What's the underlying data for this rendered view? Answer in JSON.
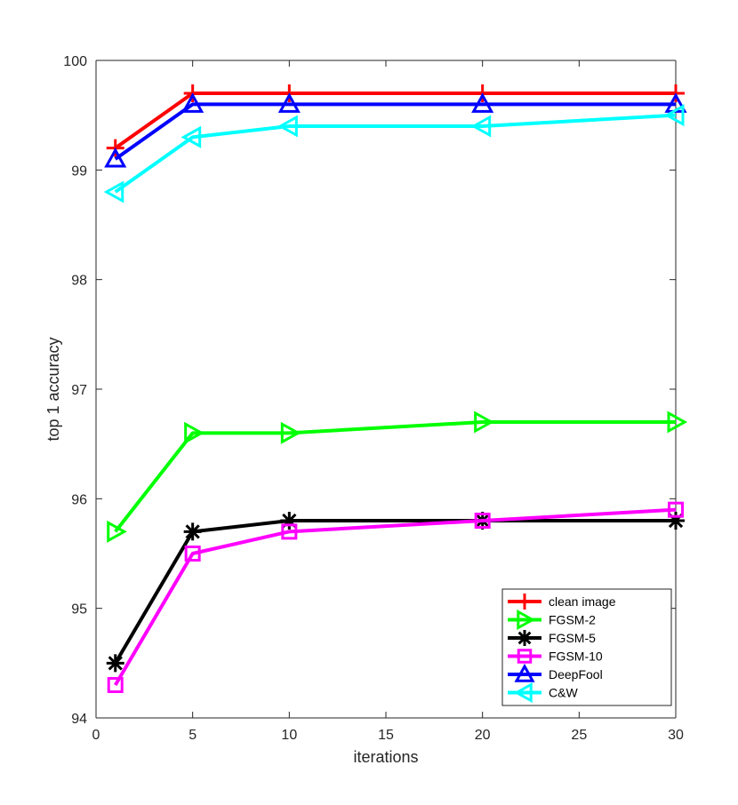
{
  "chart_data": {
    "type": "line",
    "title": "",
    "xlabel": "iterations",
    "ylabel": "top 1 accuracy",
    "xlim": [
      0,
      30
    ],
    "ylim": [
      94,
      100
    ],
    "xticks": [
      0,
      5,
      10,
      15,
      20,
      25,
      30
    ],
    "yticks": [
      94,
      95,
      96,
      97,
      98,
      99,
      100
    ],
    "grid": false,
    "legend_position": "bottom-right",
    "x": [
      1,
      5,
      10,
      20,
      30
    ],
    "series": [
      {
        "name": "clean image",
        "color": "#ff0000",
        "marker": "plus",
        "values": [
          99.2,
          99.7,
          99.7,
          99.7,
          99.7
        ]
      },
      {
        "name": "FGSM-2",
        "color": "#00ff00",
        "marker": "triangle-right",
        "values": [
          95.7,
          96.6,
          96.6,
          96.7,
          96.7
        ]
      },
      {
        "name": "FGSM-5",
        "color": "#000000",
        "marker": "asterisk",
        "values": [
          94.5,
          95.7,
          95.8,
          95.8,
          95.8
        ]
      },
      {
        "name": "FGSM-10",
        "color": "#ff00ff",
        "marker": "square",
        "values": [
          94.3,
          95.5,
          95.7,
          95.8,
          95.9
        ]
      },
      {
        "name": "DeepFool",
        "color": "#0000ff",
        "marker": "triangle-up",
        "values": [
          99.1,
          99.6,
          99.6,
          99.6,
          99.6
        ]
      },
      {
        "name": "C&W",
        "color": "#00ffff",
        "marker": "triangle-left",
        "values": [
          98.8,
          99.3,
          99.4,
          99.4,
          99.5
        ]
      }
    ]
  }
}
